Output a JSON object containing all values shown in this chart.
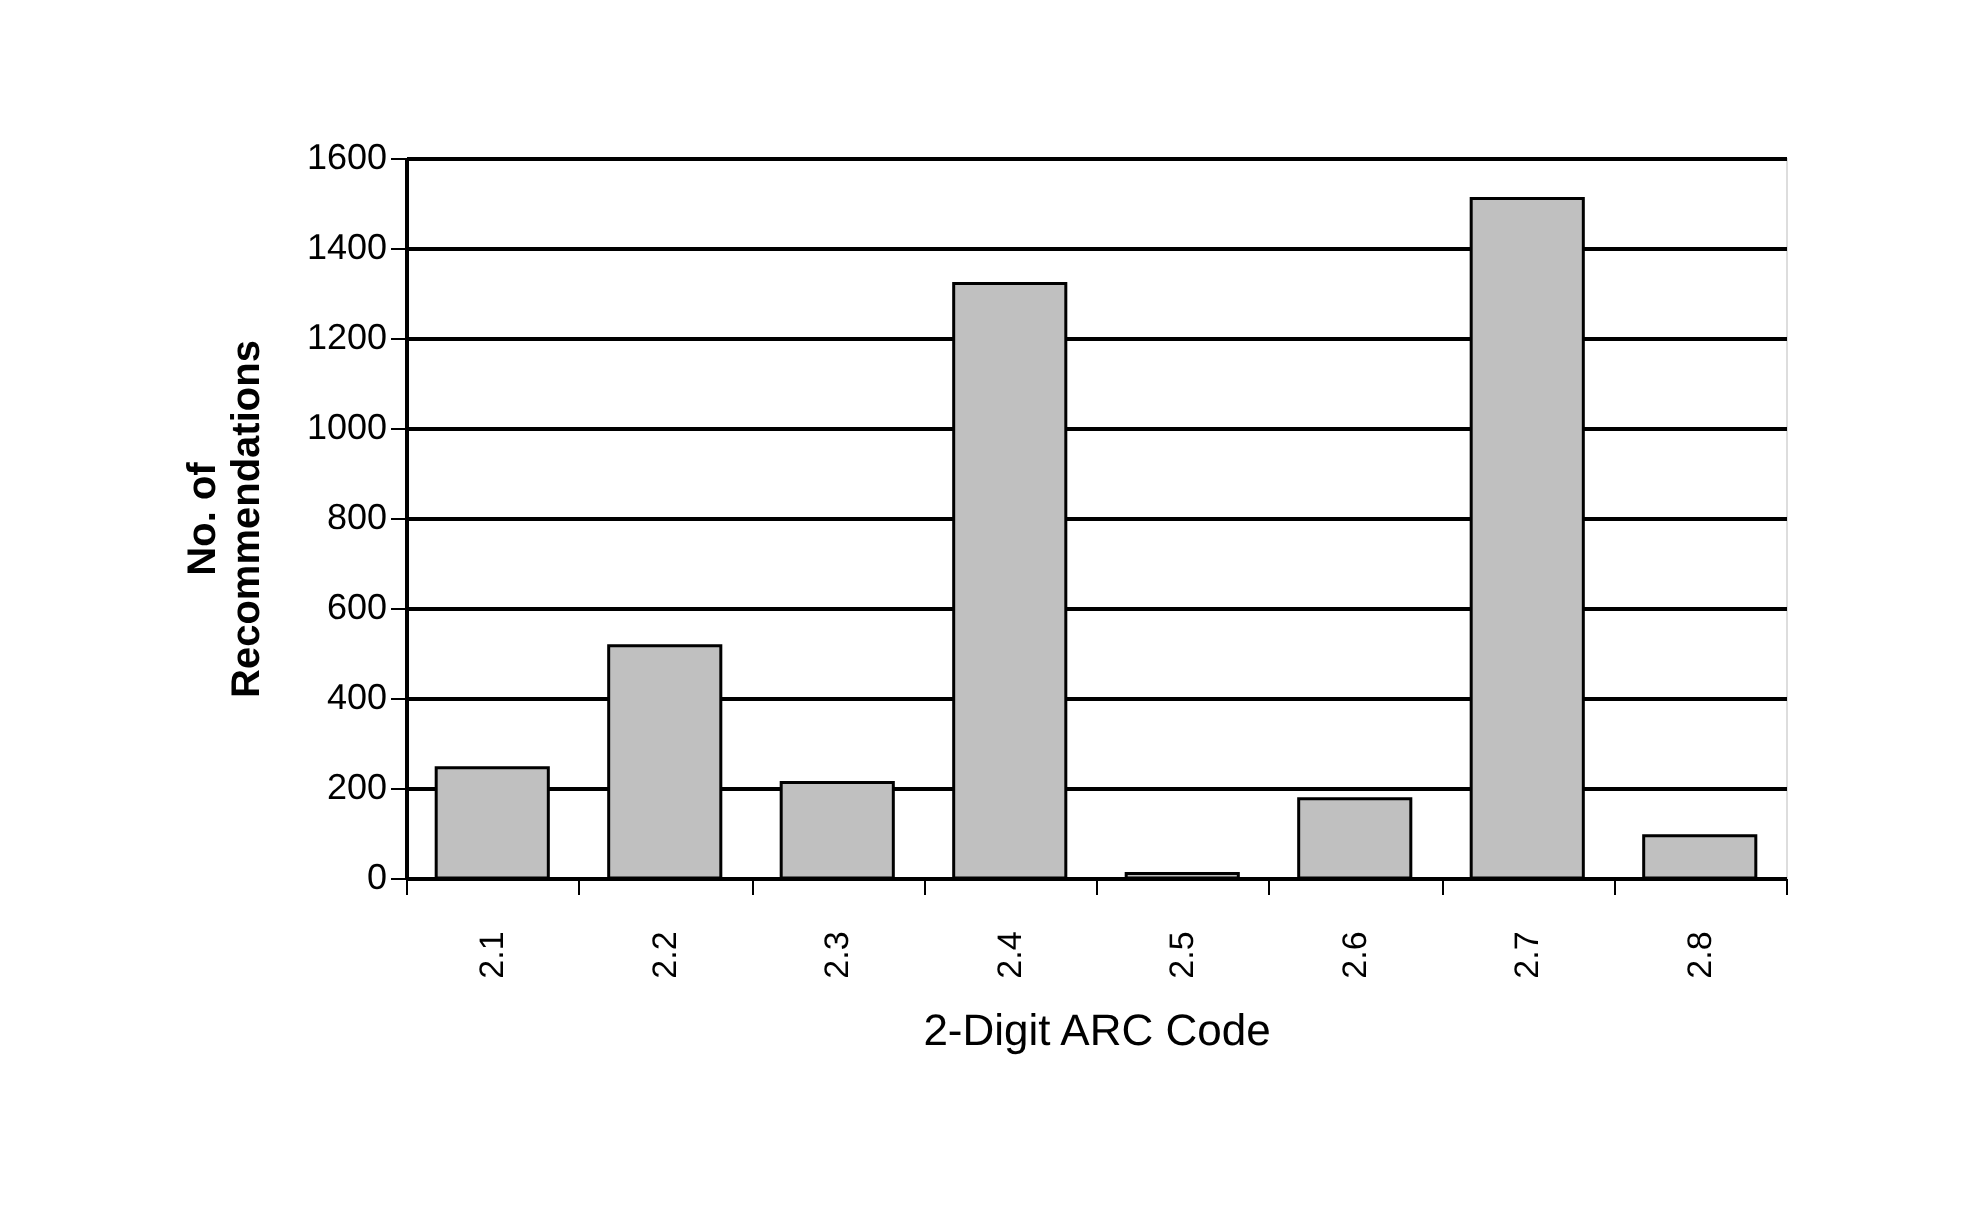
{
  "chart_data": {
    "type": "bar",
    "xlabel": "2-Digit ARC Code",
    "ylabel": "No. of\nRecommendations",
    "categories": [
      "2.1",
      "2.2",
      "2.3",
      "2.4",
      "2.5",
      "2.6",
      "2.7",
      "2.8"
    ],
    "values": [
      245,
      516,
      212,
      1321,
      10,
      176,
      1510,
      94
    ],
    "color": "#c0c0c0",
    "ylim": [
      0,
      1600
    ],
    "yticks": [
      0,
      200,
      400,
      600,
      800,
      1000,
      1200,
      1400,
      1600
    ],
    "grid": "y"
  }
}
